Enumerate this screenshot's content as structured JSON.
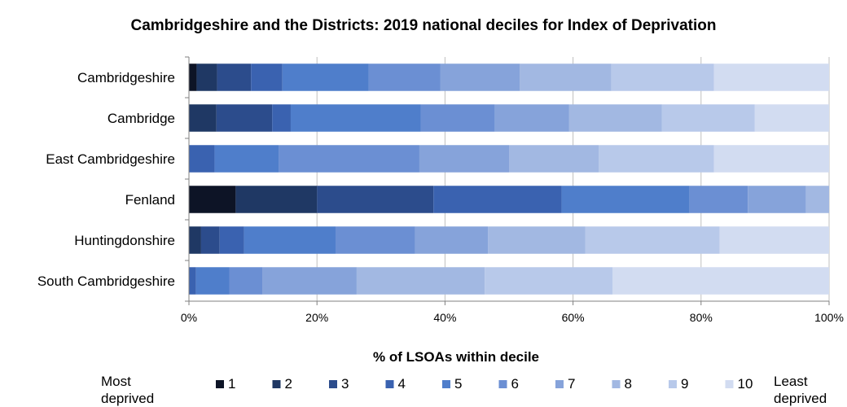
{
  "chart_data": {
    "type": "bar",
    "orientation": "horizontal",
    "stacked": true,
    "title": "Cambridgeshire and the Districts: 2019 national deciles for Index of Deprivation",
    "xlabel": "% of LSOAs within decile",
    "ylabel": "",
    "xlim": [
      0,
      100
    ],
    "x_ticks": [
      "0%",
      "20%",
      "40%",
      "60%",
      "80%",
      "100%"
    ],
    "grid": true,
    "legend_position": "bottom",
    "legend_left_label": [
      "Most",
      "deprived"
    ],
    "legend_right_label": [
      "Least",
      "deprived"
    ],
    "categories": [
      "Cambridgeshire",
      "Cambridge",
      "East Cambridgeshire",
      "Fenland",
      "Huntingdonshire",
      "South Cambridgeshire"
    ],
    "series": [
      {
        "name": "1",
        "color": "#0d1426",
        "values": [
          1.2,
          0.0,
          0.0,
          7.3,
          0.0,
          0.0
        ]
      },
      {
        "name": "2",
        "color": "#1f3864",
        "values": [
          3.2,
          4.3,
          0.0,
          12.7,
          1.9,
          0.0
        ]
      },
      {
        "name": "3",
        "color": "#2c4c8c",
        "values": [
          5.3,
          8.7,
          0.0,
          18.2,
          2.9,
          0.0
        ]
      },
      {
        "name": "4",
        "color": "#3a62b0",
        "values": [
          4.9,
          2.9,
          4.0,
          20.0,
          3.8,
          1.1
        ]
      },
      {
        "name": "5",
        "color": "#4f7ecb",
        "values": [
          13.5,
          20.3,
          10.0,
          20.0,
          14.3,
          5.2
        ]
      },
      {
        "name": "6",
        "color": "#6b8fd3",
        "values": [
          11.2,
          11.6,
          22.0,
          9.1,
          12.4,
          5.2
        ]
      },
      {
        "name": "7",
        "color": "#86a3da",
        "values": [
          12.4,
          11.6,
          14.0,
          9.1,
          11.4,
          14.7
        ]
      },
      {
        "name": "8",
        "color": "#a2b8e2",
        "values": [
          14.3,
          14.5,
          14.0,
          3.6,
          15.2,
          20.0
        ]
      },
      {
        "name": "9",
        "color": "#b8c9ea",
        "values": [
          16.0,
          14.5,
          18.0,
          0.0,
          21.0,
          20.0
        ]
      },
      {
        "name": "10",
        "color": "#d2dcf1",
        "values": [
          18.0,
          11.6,
          18.0,
          0.0,
          17.1,
          33.8
        ]
      }
    ]
  }
}
